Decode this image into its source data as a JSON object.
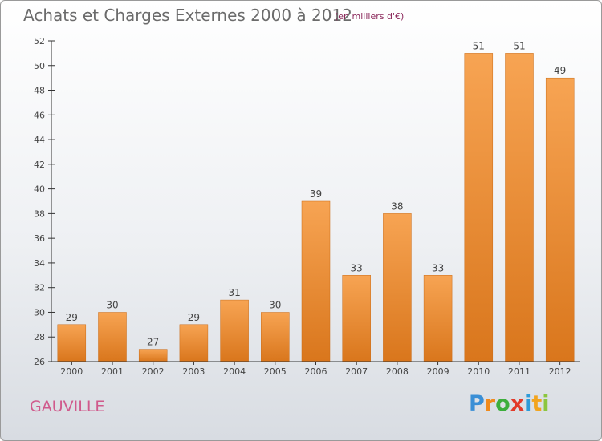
{
  "title": "Achats et Charges Externes 2000 à 2012",
  "subtitle": "(en milliers d'€)",
  "commune": "GAUVILLE",
  "brand": {
    "letters": [
      "P",
      "r",
      "o",
      "x",
      "i",
      "t",
      "i"
    ],
    "colors": [
      "#3a8fd6",
      "#f08a1c",
      "#3cae3c",
      "#e23a2a",
      "#2d9bd9",
      "#f2a41e",
      "#8cc63f"
    ]
  },
  "colors": {
    "bar_top": "#f7a453",
    "bar_bottom": "#d9761c",
    "axis": "#333333",
    "grid": "#dddddd"
  },
  "chart_data": {
    "type": "bar",
    "categories": [
      "2000",
      "2001",
      "2002",
      "2003",
      "2004",
      "2005",
      "2006",
      "2007",
      "2008",
      "2009",
      "2010",
      "2011",
      "2012"
    ],
    "values": [
      29,
      30,
      27,
      29,
      31,
      30,
      39,
      33,
      38,
      33,
      51,
      51,
      49
    ],
    "value_labels": [
      "29",
      "30",
      "27",
      "29",
      "31",
      "30",
      "39",
      "33",
      "38",
      "33",
      "51",
      "51",
      "49"
    ],
    "ylim": [
      26,
      52
    ],
    "yticks": [
      "26",
      "28",
      "30",
      "32",
      "34",
      "36",
      "38",
      "40",
      "42",
      "44",
      "46",
      "48",
      "50",
      "52"
    ],
    "grid": false,
    "legend": "none"
  }
}
